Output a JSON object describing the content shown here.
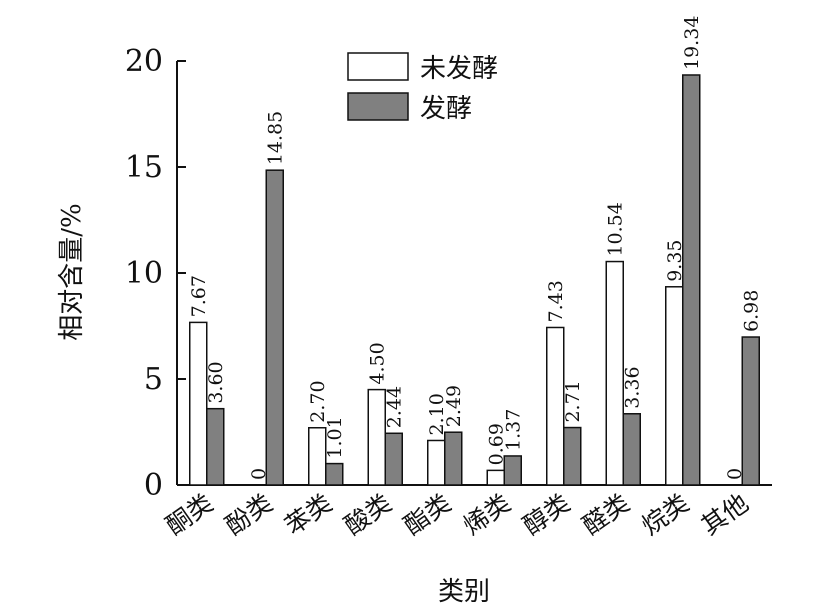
{
  "chart_data": {
    "type": "bar",
    "title": "",
    "xlabel": "类别",
    "ylabel": "相对含量/%",
    "ylim": [
      0,
      20
    ],
    "yticks": [
      "0",
      "5",
      "10",
      "15",
      "20"
    ],
    "legend_position": "top",
    "categories": [
      "酮类",
      "酚类",
      "苯类",
      "酸类",
      "酯类",
      "烯类",
      "醇类",
      "醛类",
      "烷类",
      "其他"
    ],
    "series": [
      {
        "name": "未发酵",
        "color": "#ffffff",
        "values": [
          7.67,
          0,
          2.7,
          4.5,
          2.1,
          0.69,
          7.43,
          10.54,
          9.35,
          0
        ],
        "labels": [
          "7.67",
          "0",
          "2.70",
          "4.50",
          "2.10",
          "0.69",
          "7.43",
          "10.54",
          "9.35",
          "0"
        ]
      },
      {
        "name": "发酵",
        "color": "#808080",
        "values": [
          3.6,
          14.85,
          1.01,
          2.44,
          2.49,
          1.37,
          2.71,
          3.36,
          19.34,
          6.98
        ],
        "labels": [
          "3.60",
          "14.85",
          "1.01",
          "2.44",
          "2.49",
          "1.37",
          "2.71",
          "3.36",
          "19.34",
          "6.98"
        ]
      }
    ]
  }
}
